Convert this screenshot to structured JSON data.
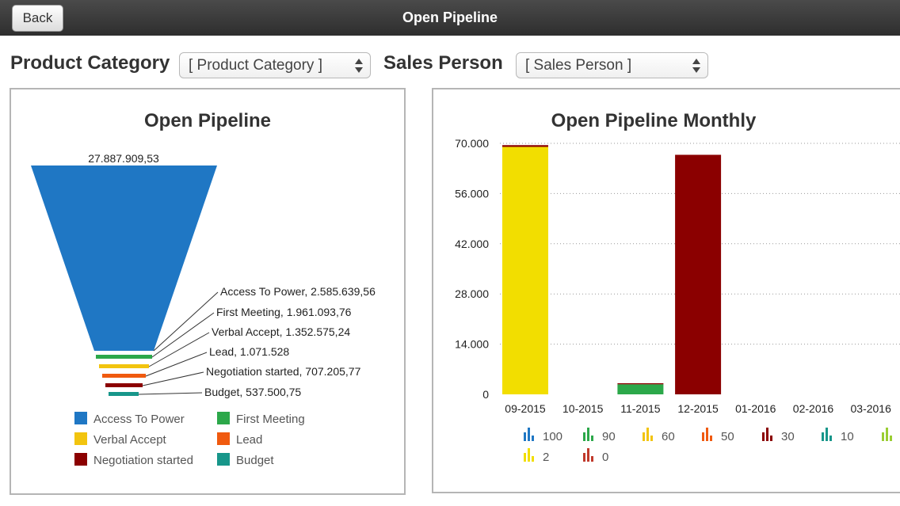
{
  "header": {
    "title": "Open Pipeline",
    "back_label": "Back"
  },
  "filters": {
    "product_category_label": "Product Category",
    "product_category_value": "[ Product Category ]",
    "sales_person_label": "Sales Person",
    "sales_person_value": "[ Sales Person ]"
  },
  "colors": {
    "access_to_power": "#1f77c4",
    "first_meeting": "#2ca84a",
    "verbal_accept": "#f2c40f",
    "lead": "#f05a0f",
    "negotiation_started": "#8b0000",
    "budget": "#17968a",
    "bar_yellow": "#f2de00"
  },
  "chart_data": [
    {
      "type": "funnel",
      "title": "Open Pipeline",
      "top_label": "27.887.909,53",
      "stages": [
        {
          "name": "Access To Power",
          "label": "Access To Power, 2.585.639,56",
          "value": 2585639.56,
          "color": "#1f77c4"
        },
        {
          "name": "First Meeting",
          "label": "First Meeting, 1.961.093,76",
          "value": 1961093.76,
          "color": "#2ca84a"
        },
        {
          "name": "Verbal Accept",
          "label": "Verbal Accept, 1.352.575,24",
          "value": 1352575.24,
          "color": "#f2c40f"
        },
        {
          "name": "Lead",
          "label": "Lead, 1.071.528",
          "value": 1071528,
          "color": "#f05a0f"
        },
        {
          "name": "Negotiation started",
          "label": "Negotiation started, 707.205,77",
          "value": 707205.77,
          "color": "#8b0000"
        },
        {
          "name": "Budget",
          "label": "Budget, 537.500,75",
          "value": 537500.75,
          "color": "#17968a"
        }
      ],
      "legend": [
        {
          "name": "Access To Power",
          "color": "#1f77c4"
        },
        {
          "name": "First Meeting",
          "color": "#2ca84a"
        },
        {
          "name": "Verbal Accept",
          "color": "#f2c40f"
        },
        {
          "name": "Lead",
          "color": "#f05a0f"
        },
        {
          "name": "Negotiation started",
          "color": "#8b0000"
        },
        {
          "name": "Budget",
          "color": "#17968a"
        }
      ]
    },
    {
      "type": "bar",
      "stacked": true,
      "title": "Open Pipeline Monthly",
      "categories": [
        "09-2015",
        "10-2015",
        "11-2015",
        "12-2015",
        "01-2016",
        "02-2016",
        "03-2016"
      ],
      "ylim": [
        0,
        70000
      ],
      "yticks": [
        "70.000",
        "56.000",
        "42.000",
        "28.000",
        "14.000",
        "0"
      ],
      "ytick_values": [
        70000,
        56000,
        42000,
        28000,
        14000,
        0
      ],
      "grid": "horizontal-dotted",
      "series": [
        {
          "name": "90",
          "color": "#2ca84a",
          "values": [
            0,
            0,
            2800,
            0,
            0,
            0,
            0
          ]
        },
        {
          "name": "60",
          "color": "#f2de00",
          "values": [
            69000,
            0,
            0,
            0,
            0,
            0,
            0
          ]
        },
        {
          "name": "30",
          "color": "#8b0000",
          "values": [
            500,
            0,
            300,
            66800,
            0,
            0,
            0
          ]
        }
      ],
      "legend": [
        {
          "name": "100",
          "color": "#1f77c4"
        },
        {
          "name": "90",
          "color": "#2ca84a"
        },
        {
          "name": "60",
          "color": "#f2c40f"
        },
        {
          "name": "50",
          "color": "#f05a0f"
        },
        {
          "name": "30",
          "color": "#8b0000"
        },
        {
          "name": "10",
          "color": "#17968a"
        },
        {
          "name": "",
          "color": "#9acd32"
        },
        {
          "name": "2",
          "color": "#f2de00"
        },
        {
          "name": "0",
          "color": "#c0392b"
        }
      ]
    }
  ]
}
